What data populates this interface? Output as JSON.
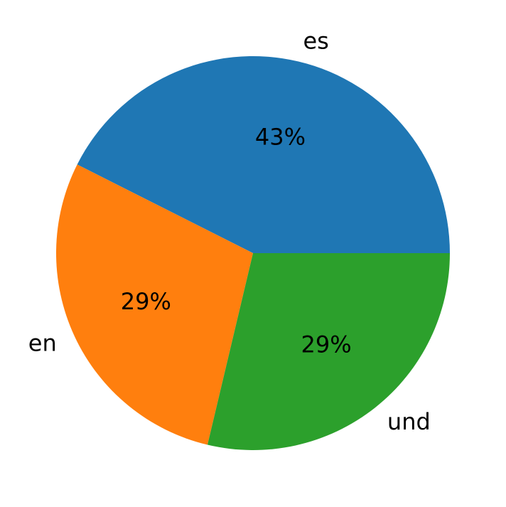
{
  "chart_data": {
    "type": "pie",
    "categories": [
      "es",
      "en",
      "und"
    ],
    "values": [
      43,
      29,
      29
    ],
    "value_labels": [
      "43%",
      "29%",
      "29%"
    ],
    "colors": [
      "#1f77b4",
      "#ff7f0e",
      "#2ca02c"
    ],
    "start_angle": 0,
    "counterclockwise": true
  }
}
